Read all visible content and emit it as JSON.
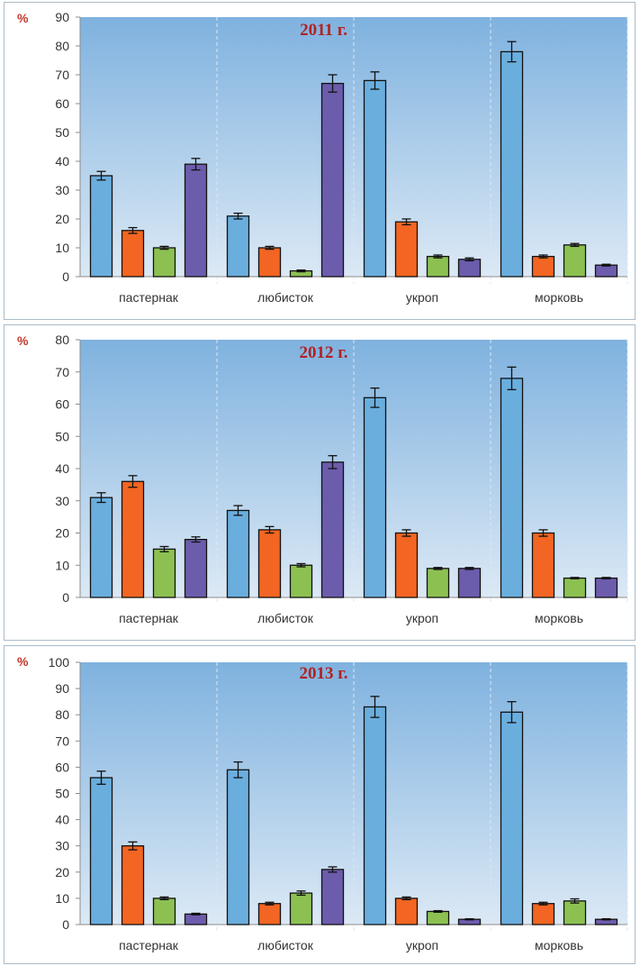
{
  "colors": {
    "series": [
      "#6aaede",
      "#f26522",
      "#8cc152",
      "#6c5cac"
    ],
    "plot_top": "#7fb2df",
    "plot_bottom": "#dce9f5",
    "title": "#b22222",
    "unit": "#c0392b"
  },
  "chart_data": [
    {
      "type": "bar",
      "title": "2011 г.",
      "ylabel": "%",
      "categories": [
        "пастернак",
        "любисток",
        "укроп",
        "морковь"
      ],
      "yticks": [
        "0",
        "10",
        "20",
        "30",
        "40",
        "50",
        "60",
        "70",
        "80",
        "90"
      ],
      "ylim": [
        0,
        90
      ],
      "series": [
        {
          "values": [
            35,
            21,
            68,
            78
          ],
          "errors": [
            1.5,
            1,
            3,
            3.5
          ]
        },
        {
          "values": [
            16,
            10,
            19,
            7
          ],
          "errors": [
            1,
            0.5,
            1,
            0.5
          ]
        },
        {
          "values": [
            10,
            2,
            7,
            11
          ],
          "errors": [
            0.5,
            0.3,
            0.5,
            0.5
          ]
        },
        {
          "values": [
            39,
            67,
            6,
            4
          ],
          "errors": [
            2,
            3,
            0.5,
            0.3
          ]
        }
      ]
    },
    {
      "type": "bar",
      "title": "2012 г.",
      "ylabel": "%",
      "categories": [
        "пастернак",
        "любисток",
        "укроп",
        "морковь"
      ],
      "yticks": [
        "0",
        "10",
        "20",
        "30",
        "40",
        "50",
        "60",
        "70",
        "80"
      ],
      "ylim": [
        0,
        80
      ],
      "series": [
        {
          "values": [
            31,
            27,
            62,
            68
          ],
          "errors": [
            1.5,
            1.5,
            3,
            3.5
          ]
        },
        {
          "values": [
            36,
            21,
            20,
            20
          ],
          "errors": [
            1.8,
            1,
            1,
            1
          ]
        },
        {
          "values": [
            15,
            10,
            9,
            6
          ],
          "errors": [
            0.8,
            0.5,
            0.3,
            0.2
          ]
        },
        {
          "values": [
            18,
            42,
            9,
            6
          ],
          "errors": [
            0.8,
            2,
            0.3,
            0.2
          ]
        }
      ]
    },
    {
      "type": "bar",
      "title": "2013 г.",
      "ylabel": "%",
      "categories": [
        "пастернак",
        "любисток",
        "укроп",
        "морковь"
      ],
      "yticks": [
        "0",
        "10",
        "20",
        "30",
        "40",
        "50",
        "60",
        "70",
        "80",
        "90",
        "100"
      ],
      "ylim": [
        0,
        100
      ],
      "series": [
        {
          "values": [
            56,
            59,
            83,
            81
          ],
          "errors": [
            2.5,
            3,
            4,
            4
          ]
        },
        {
          "values": [
            30,
            8,
            10,
            8
          ],
          "errors": [
            1.5,
            0.5,
            0.5,
            0.5
          ]
        },
        {
          "values": [
            10,
            12,
            5,
            9
          ],
          "errors": [
            0.5,
            0.8,
            0.3,
            0.8
          ]
        },
        {
          "values": [
            4,
            21,
            2,
            2
          ],
          "errors": [
            0.3,
            1,
            0.2,
            0.2
          ]
        }
      ]
    }
  ]
}
